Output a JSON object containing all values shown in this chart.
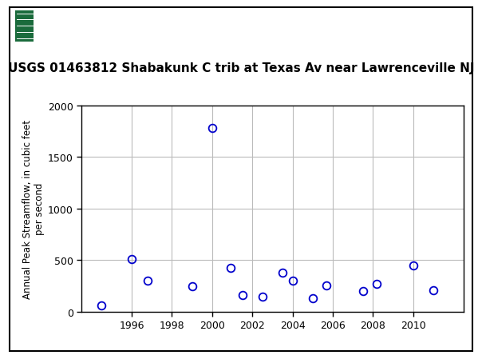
{
  "title": "USGS 01463812 Shabakunk C trib at Texas Av near Lawrenceville NJ",
  "ylabel": "Annual Peak Streamflow, in cubic feet\nper second",
  "years": [
    1994.5,
    1996.0,
    1996.8,
    1999.0,
    2000.0,
    2000.9,
    2001.5,
    2002.5,
    2003.5,
    2004.0,
    2005.0,
    2005.7,
    2007.5,
    2008.2,
    2010.0,
    2011.0
  ],
  "values": [
    60,
    510,
    300,
    245,
    1780,
    420,
    160,
    140,
    380,
    300,
    130,
    250,
    195,
    270,
    450,
    205
  ],
  "xlim": [
    1993.5,
    2012.5
  ],
  "ylim": [
    0,
    2000
  ],
  "yticks": [
    0,
    500,
    1000,
    1500,
    2000
  ],
  "xticks": [
    1996,
    1998,
    2000,
    2002,
    2004,
    2006,
    2008,
    2010
  ],
  "marker_color": "#0000cc",
  "marker_facecolor": "none",
  "marker_size": 7,
  "marker_style": "o",
  "marker_linewidth": 1.3,
  "grid_color": "#bbbbbb",
  "plot_bg": "#ffffff",
  "fig_bg": "#ffffff",
  "header_bg": "#1a6b3c",
  "title_fontsize": 11,
  "axis_fontsize": 8.5,
  "tick_fontsize": 9,
  "fig_border_color": "#000000"
}
